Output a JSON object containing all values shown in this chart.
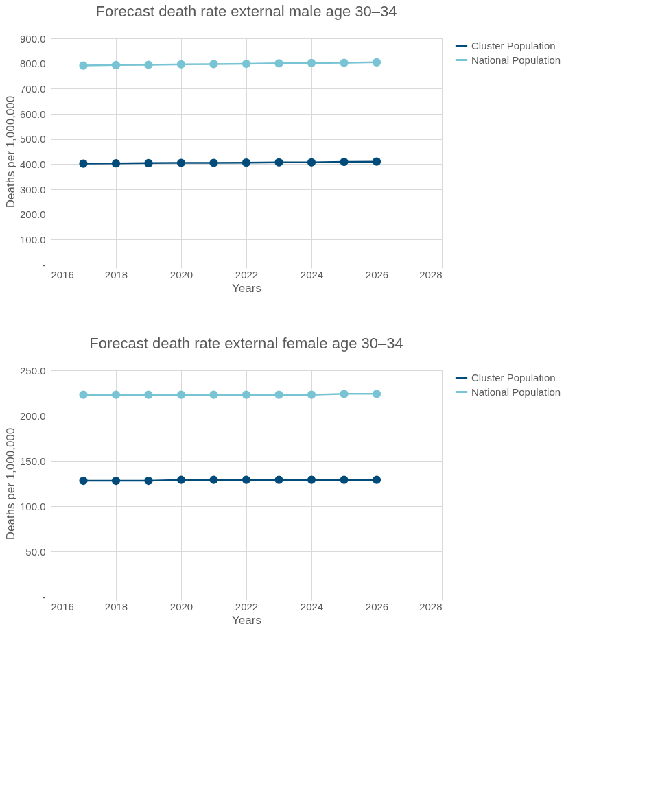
{
  "chart_data": [
    {
      "type": "line",
      "title": "Forecast death rate external male age 30–34",
      "xlabel": "Years",
      "ylabel": "Deaths per 1,000,000",
      "x": [
        2017,
        2018,
        2019,
        2020,
        2021,
        2022,
        2023,
        2024,
        2025,
        2026
      ],
      "series": [
        {
          "name": "Cluster Population",
          "color": "#004b7a",
          "values": [
            402,
            403,
            404,
            405,
            405,
            406,
            407,
            407,
            409,
            410
          ]
        },
        {
          "name": "National Population",
          "color": "#78c3d4",
          "values": [
            792,
            794,
            795,
            797,
            798,
            799,
            801,
            802,
            803,
            805
          ]
        }
      ],
      "xlim": [
        2016,
        2028
      ],
      "xticks": [
        2016,
        2018,
        2020,
        2022,
        2024,
        2026,
        2028
      ],
      "ylim": [
        0,
        900
      ],
      "yticks": [
        {
          "value": 0,
          "label": "-"
        },
        {
          "value": 100,
          "label": "100.0"
        },
        {
          "value": 200,
          "label": "200.0"
        },
        {
          "value": 300,
          "label": "300.0"
        },
        {
          "value": 400,
          "label": "400.0"
        },
        {
          "value": 500,
          "label": "500.0"
        },
        {
          "value": 600,
          "label": "600.0"
        },
        {
          "value": 700,
          "label": "700.0"
        },
        {
          "value": 800,
          "label": "800.0"
        },
        {
          "value": 900,
          "label": "900.0"
        }
      ],
      "grid": true,
      "legend": "right",
      "marker": "circle",
      "line_style": "solid"
    },
    {
      "type": "line",
      "title": "Forecast death rate external female age 30–34",
      "xlabel": "Years",
      "ylabel": "Deaths per 1,000,000",
      "x": [
        2017,
        2018,
        2019,
        2020,
        2021,
        2022,
        2023,
        2024,
        2025,
        2026
      ],
      "series": [
        {
          "name": "Cluster Population",
          "color": "#004b7a",
          "values": [
            128,
            128,
            128,
            129,
            129,
            129,
            129,
            129,
            129,
            129
          ]
        },
        {
          "name": "National Population",
          "color": "#78c3d4",
          "values": [
            223,
            223,
            223,
            223,
            223,
            223,
            223,
            223,
            224,
            224
          ]
        }
      ],
      "xlim": [
        2016,
        2028
      ],
      "xticks": [
        2016,
        2018,
        2020,
        2022,
        2024,
        2026,
        2028
      ],
      "ylim": [
        0,
        250
      ],
      "yticks": [
        {
          "value": 0,
          "label": "-"
        },
        {
          "value": 50,
          "label": "50.0"
        },
        {
          "value": 100,
          "label": "100.0"
        },
        {
          "value": 150,
          "label": "150.0"
        },
        {
          "value": 200,
          "label": "200.0"
        },
        {
          "value": 250,
          "label": "250.0"
        }
      ],
      "grid": true,
      "legend": "right",
      "marker": "circle",
      "line_style": "solid"
    }
  ]
}
